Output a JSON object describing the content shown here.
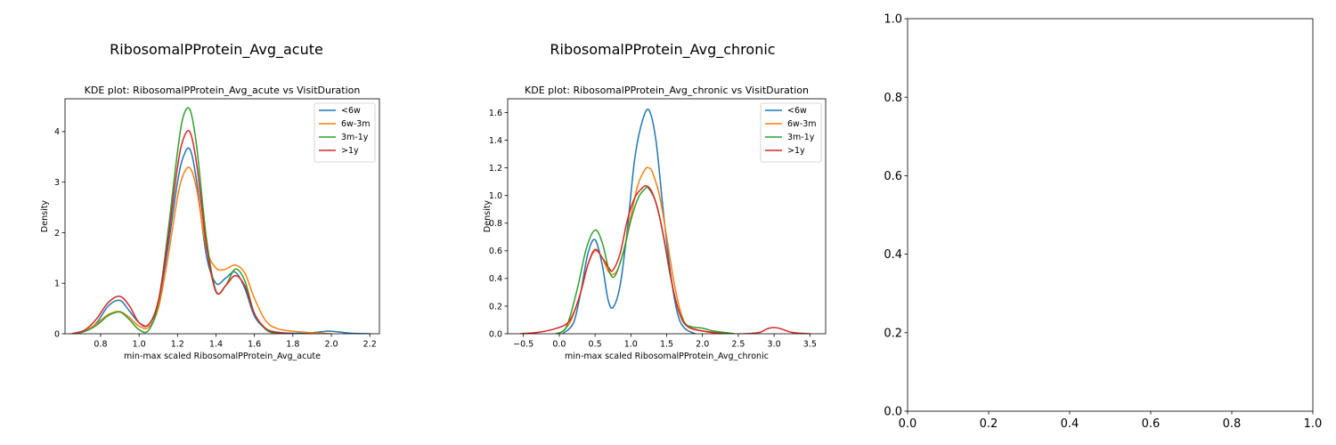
{
  "figure": {
    "panel_titles": [
      "RibosomalPProtein_Avg_acute",
      "RibosomalPProtein_Avg_chronic"
    ]
  },
  "chart_data": [
    {
      "type": "line",
      "title": "KDE plot:  RibosomalPProtein_Avg_acute vs VisitDuration",
      "xlabel": "min-max scaled RibosomalPProtein_Avg_acute",
      "ylabel": "Density",
      "xlim": [
        0.615,
        2.25
      ],
      "ylim": [
        0,
        4.65
      ],
      "xticks": [
        0.8,
        1.0,
        1.2,
        1.4,
        1.6,
        1.8,
        2.0,
        2.2
      ],
      "xtick_labels": [
        "0.8",
        "1.0",
        "1.2",
        "1.4",
        "1.6",
        "1.8",
        "2.0",
        "2.2"
      ],
      "yticks": [
        0,
        1,
        2,
        3,
        4
      ],
      "ytick_labels": [
        "0",
        "1",
        "2",
        "3",
        "4"
      ],
      "legend_position": "top-right",
      "series": [
        {
          "name": "<6w",
          "color": "#1f77b4",
          "x": [
            0.65,
            0.72,
            0.78,
            0.84,
            0.9,
            0.95,
            1.0,
            1.05,
            1.1,
            1.15,
            1.2,
            1.23,
            1.265,
            1.3,
            1.35,
            1.4,
            1.45,
            1.5,
            1.55,
            1.6,
            1.66,
            1.72,
            1.8,
            1.9,
            1.98,
            2.03,
            2.1,
            2.2
          ],
          "y": [
            0.0,
            0.05,
            0.22,
            0.55,
            0.66,
            0.45,
            0.22,
            0.18,
            0.6,
            1.7,
            3.0,
            3.5,
            3.65,
            3.0,
            1.55,
            1.0,
            1.1,
            1.22,
            0.9,
            0.35,
            0.1,
            0.03,
            0.01,
            0.02,
            0.05,
            0.04,
            0.01,
            0.0
          ]
        },
        {
          "name": "6w-3m",
          "color": "#ff7f0e",
          "x": [
            0.65,
            0.72,
            0.78,
            0.84,
            0.9,
            0.95,
            1.0,
            1.05,
            1.1,
            1.15,
            1.2,
            1.23,
            1.265,
            1.3,
            1.35,
            1.4,
            1.45,
            1.5,
            1.55,
            1.6,
            1.66,
            1.72,
            1.8,
            1.9,
            2.0
          ],
          "y": [
            0.0,
            0.06,
            0.2,
            0.38,
            0.44,
            0.32,
            0.15,
            0.13,
            0.5,
            1.5,
            2.7,
            3.15,
            3.28,
            2.85,
            1.7,
            1.3,
            1.28,
            1.36,
            1.2,
            0.7,
            0.25,
            0.1,
            0.05,
            0.02,
            0.0
          ]
        },
        {
          "name": "3m-1y",
          "color": "#2ca02c",
          "x": [
            0.65,
            0.72,
            0.78,
            0.84,
            0.9,
            0.95,
            1.0,
            1.05,
            1.1,
            1.15,
            1.2,
            1.23,
            1.265,
            1.3,
            1.35,
            1.4,
            1.45,
            1.5,
            1.55,
            1.6,
            1.66,
            1.72,
            1.8
          ],
          "y": [
            0.0,
            0.05,
            0.17,
            0.36,
            0.43,
            0.28,
            0.08,
            0.07,
            0.6,
            2.0,
            3.6,
            4.3,
            4.43,
            3.7,
            1.9,
            0.85,
            0.95,
            1.28,
            1.05,
            0.4,
            0.08,
            0.01,
            0.0
          ]
        },
        {
          "name": ">1y",
          "color": "#d62728",
          "x": [
            0.65,
            0.72,
            0.78,
            0.84,
            0.9,
            0.95,
            1.0,
            1.05,
            1.1,
            1.15,
            1.2,
            1.23,
            1.265,
            1.3,
            1.35,
            1.4,
            1.45,
            1.5,
            1.55,
            1.6,
            1.66,
            1.72,
            1.8
          ],
          "y": [
            0.0,
            0.08,
            0.3,
            0.62,
            0.74,
            0.55,
            0.22,
            0.18,
            0.65,
            1.85,
            3.3,
            3.85,
            3.99,
            3.35,
            1.75,
            0.83,
            0.95,
            1.15,
            0.95,
            0.4,
            0.1,
            0.02,
            0.0
          ]
        }
      ]
    },
    {
      "type": "line",
      "title": "KDE plot:  RibosomalPProtein_Avg_chronic vs VisitDuration",
      "xlabel": "min-max scaled RibosomalPProtein_Avg_chronic",
      "ylabel": "Density",
      "xlim": [
        -0.72,
        3.72
      ],
      "ylim": [
        0,
        1.7
      ],
      "xticks": [
        -0.5,
        0.0,
        0.5,
        1.0,
        1.5,
        2.0,
        2.5,
        3.0,
        3.5
      ],
      "xtick_labels": [
        "−0.5",
        "0.0",
        "0.5",
        "1.0",
        "1.5",
        "2.0",
        "2.5",
        "3.0",
        "3.5"
      ],
      "yticks": [
        0.0,
        0.2,
        0.4,
        0.6,
        0.8,
        1.0,
        1.2,
        1.4,
        1.6
      ],
      "ytick_labels": [
        "0.0",
        "0.2",
        "0.4",
        "0.6",
        "0.8",
        "1.0",
        "1.2",
        "1.4",
        "1.6"
      ],
      "legend_position": "top-right",
      "series": [
        {
          "name": "<6w",
          "color": "#1f77b4",
          "x": [
            0.05,
            0.2,
            0.3,
            0.4,
            0.5,
            0.6,
            0.68,
            0.75,
            0.85,
            0.95,
            1.05,
            1.15,
            1.25,
            1.35,
            1.45,
            1.55,
            1.65,
            1.75,
            1.9
          ],
          "y": [
            0.0,
            0.08,
            0.3,
            0.58,
            0.68,
            0.5,
            0.25,
            0.19,
            0.35,
            0.75,
            1.25,
            1.52,
            1.62,
            1.4,
            0.9,
            0.45,
            0.15,
            0.04,
            0.0
          ]
        },
        {
          "name": "6w-3m",
          "color": "#ff7f0e",
          "x": [
            0.0,
            0.15,
            0.3,
            0.4,
            0.5,
            0.6,
            0.7,
            0.8,
            0.9,
            1.0,
            1.1,
            1.2,
            1.25,
            1.3,
            1.4,
            1.5,
            1.6,
            1.7,
            1.8,
            2.0,
            2.2,
            2.35
          ],
          "y": [
            0.0,
            0.08,
            0.3,
            0.5,
            0.6,
            0.55,
            0.44,
            0.45,
            0.6,
            0.85,
            1.08,
            1.19,
            1.2,
            1.17,
            1.0,
            0.7,
            0.38,
            0.15,
            0.05,
            0.02,
            0.01,
            0.0
          ]
        },
        {
          "name": "3m-1y",
          "color": "#2ca02c",
          "x": [
            -0.05,
            0.1,
            0.25,
            0.38,
            0.5,
            0.6,
            0.7,
            0.78,
            0.9,
            1.0,
            1.1,
            1.2,
            1.25,
            1.35,
            1.45,
            1.55,
            1.65,
            1.75,
            1.85,
            2.0,
            2.15,
            2.3,
            2.45
          ],
          "y": [
            0.0,
            0.05,
            0.32,
            0.62,
            0.75,
            0.66,
            0.45,
            0.42,
            0.6,
            0.82,
            0.98,
            1.05,
            1.05,
            0.95,
            0.72,
            0.42,
            0.2,
            0.08,
            0.05,
            0.04,
            0.02,
            0.01,
            0.0
          ]
        },
        {
          "name": ">1y",
          "color": "#d62728",
          "x": [
            -0.55,
            -0.3,
            -0.1,
            0.1,
            0.2,
            0.3,
            0.4,
            0.5,
            0.6,
            0.7,
            0.75,
            0.85,
            0.95,
            1.05,
            1.15,
            1.22,
            1.3,
            1.4,
            1.5,
            1.6,
            1.7,
            1.8,
            2.0,
            2.3,
            2.6,
            2.8,
            2.9,
            3.0,
            3.1,
            3.25,
            3.5
          ],
          "y": [
            0.0,
            0.01,
            0.03,
            0.07,
            0.15,
            0.3,
            0.5,
            0.61,
            0.55,
            0.47,
            0.46,
            0.58,
            0.82,
            0.98,
            1.05,
            1.07,
            1.02,
            0.85,
            0.58,
            0.3,
            0.12,
            0.05,
            0.02,
            0.0,
            0.0,
            0.01,
            0.035,
            0.045,
            0.035,
            0.01,
            0.0
          ]
        }
      ]
    },
    {
      "type": "line",
      "title": "",
      "xlim": [
        0,
        1
      ],
      "ylim": [
        0,
        1
      ],
      "xticks": [
        0,
        0.2,
        0.4,
        0.6,
        0.8,
        1.0
      ],
      "xtick_labels": [
        "0.0",
        "0.2",
        "0.4",
        "0.6",
        "0.8",
        "1.0"
      ],
      "yticks": [
        0,
        0.2,
        0.4,
        0.6,
        0.8,
        1.0
      ],
      "ytick_labels": [
        "0.0",
        "0.2",
        "0.4",
        "0.6",
        "0.8",
        "1.0"
      ],
      "series": []
    }
  ]
}
